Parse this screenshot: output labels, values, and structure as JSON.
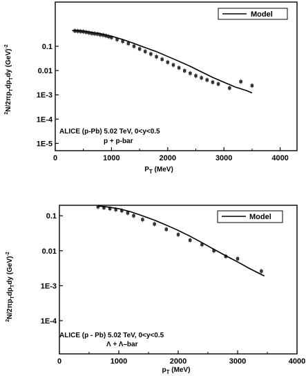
{
  "chart_data": [
    {
      "type": "scatter",
      "x_ticks": [
        "0",
        "1000",
        "2000",
        "3000",
        "4000"
      ],
      "y_ticks": [
        "0.1",
        "0.01",
        "1E-3",
        "1E-4",
        "1E-5"
      ],
      "xlim": [
        0,
        4300
      ],
      "ylim_log10": [
        -5.3,
        0.82
      ],
      "ylabel": "d²N/2πp_T dp_T dy (GeV)⁻²",
      "xlabel": "P_T (MeV)",
      "annotation_line1": "ALICE (p-Pb) 5.02 TeV, 0<y<0.5",
      "annotation_line2": "p + p-bar",
      "legend_label": "Model",
      "series": [
        {
          "name": "ALICE (p-Pb) 5.02 TeV, 0<y<0.5",
          "x": [
            350,
            400,
            450,
            500,
            550,
            600,
            650,
            700,
            750,
            800,
            850,
            900,
            950,
            1000,
            1100,
            1200,
            1300,
            1400,
            1500,
            1600,
            1700,
            1800,
            1900,
            2000,
            2100,
            2200,
            2300,
            2400,
            2500,
            2600,
            2700,
            2800,
            2900,
            3100,
            3300,
            3500
          ],
          "y": [
            0.43,
            0.42,
            0.41,
            0.4,
            0.38,
            0.36,
            0.34,
            0.33,
            0.32,
            0.3,
            0.29,
            0.27,
            0.25,
            0.23,
            0.19,
            0.16,
            0.13,
            0.1,
            0.078,
            0.061,
            0.048,
            0.037,
            0.029,
            0.022,
            0.017,
            0.013,
            0.0098,
            0.0077,
            0.0061,
            0.005,
            0.0041,
            0.0033,
            0.0028,
            0.0019,
            0.0035,
            0.0024
          ]
        },
        {
          "name": "Model",
          "x": [
            300,
            400,
            500,
            600,
            700,
            800,
            900,
            1000,
            1200,
            1400,
            1600,
            1800,
            2000,
            2200,
            2400,
            2600,
            2800,
            3000,
            3200,
            3400,
            3500
          ],
          "y": [
            0.44,
            0.44,
            0.42,
            0.39,
            0.36,
            0.33,
            0.29,
            0.26,
            0.19,
            0.13,
            0.088,
            0.06,
            0.038,
            0.024,
            0.015,
            0.0088,
            0.0052,
            0.0033,
            0.0021,
            0.0015,
            0.0012
          ]
        }
      ]
    },
    {
      "type": "scatter",
      "x_ticks": [
        "0",
        "1000",
        "2000",
        "3000",
        "4000"
      ],
      "y_ticks": [
        "0.1",
        "0.01",
        "1E-3",
        "1E-4"
      ],
      "xlim": [
        0,
        4000
      ],
      "ylim_log10": [
        -4.95,
        -0.7
      ],
      "ylabel": "d²N/2πp_T dp_T dy (GeV)⁻²",
      "xlabel": "p_T (MeV)",
      "annotation_line1": "ALICE (p - Pb) 5.02 TeV, 0<y<0.5",
      "annotation_line2": "Λ + Λ–bar",
      "legend_label": "Model",
      "series": [
        {
          "name": "ALICE (p - Pb) 5.02 TeV, 0<y<0.5",
          "x": [
            650,
            750,
            850,
            950,
            1050,
            1150,
            1250,
            1400,
            1600,
            1800,
            2000,
            2200,
            2400,
            2600,
            2800,
            3000,
            3400
          ],
          "y": [
            0.18,
            0.17,
            0.16,
            0.15,
            0.14,
            0.12,
            0.1,
            0.078,
            0.058,
            0.041,
            0.029,
            0.02,
            0.015,
            0.01,
            0.0069,
            0.0059,
            0.0026
          ]
        },
        {
          "name": "Model",
          "x": [
            650,
            800,
            1000,
            1200,
            1400,
            1600,
            1800,
            2000,
            2200,
            2400,
            2600,
            2800,
            3000,
            3200,
            3450
          ],
          "y": [
            0.19,
            0.18,
            0.16,
            0.13,
            0.1,
            0.075,
            0.054,
            0.038,
            0.026,
            0.017,
            0.011,
            0.0072,
            0.0048,
            0.0031,
            0.0019
          ]
        }
      ]
    }
  ]
}
